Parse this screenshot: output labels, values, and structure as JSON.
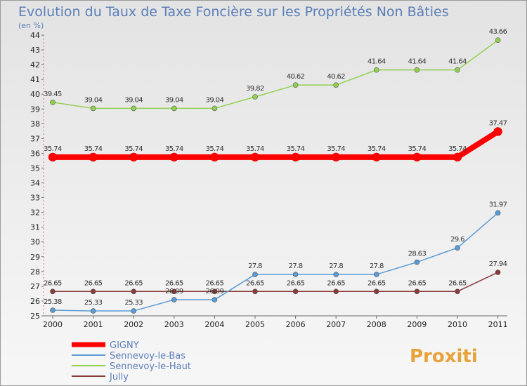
{
  "chart_data": {
    "type": "line",
    "title": "Evolution du Taux de Taxe Foncière sur les Propriétés Non Bâties",
    "subtitle": "(en %)",
    "x": [
      "2000",
      "2001",
      "2002",
      "2003",
      "2004",
      "2005",
      "2006",
      "2007",
      "2008",
      "2009",
      "2010",
      "2011"
    ],
    "ylim": [
      25,
      44
    ],
    "yticks": [
      "25",
      "26",
      "27",
      "28",
      "29",
      "30",
      "31",
      "32",
      "33",
      "34",
      "35",
      "36",
      "37",
      "38",
      "39",
      "40",
      "41",
      "42",
      "43",
      "44"
    ],
    "grid": false,
    "legend_position": "bottom-left",
    "series": [
      {
        "name": "GIGNY",
        "color": "#ff0000",
        "values": [
          35.74,
          35.74,
          35.74,
          35.74,
          35.74,
          35.74,
          35.74,
          35.74,
          35.74,
          35.74,
          35.74,
          37.47
        ],
        "labels": [
          "35.74",
          "35.74",
          "35.74",
          "35.74",
          "35.74",
          "35.74",
          "35.74",
          "35.74",
          "35.74",
          "35.74",
          "35.74",
          "37.47"
        ]
      },
      {
        "name": "Sennevoy-le-Bas",
        "color": "#5b9bd5",
        "values": [
          25.38,
          25.33,
          25.33,
          26.09,
          26.09,
          27.8,
          27.8,
          27.8,
          27.8,
          28.63,
          29.6,
          31.97
        ],
        "labels": [
          "25.38",
          "25.33",
          "25.33",
          "26.09",
          "26.09",
          "27.8",
          "27.8",
          "27.8",
          "27.8",
          "28.63",
          "29.6",
          "31.97"
        ]
      },
      {
        "name": "Sennevoy-le-Haut",
        "color": "#92d050",
        "values": [
          39.45,
          39.04,
          39.04,
          39.04,
          39.04,
          39.82,
          40.62,
          40.62,
          41.64,
          41.64,
          41.64,
          43.66
        ],
        "labels": [
          "39.45",
          "39.04",
          "39.04",
          "39.04",
          "39.04",
          "39.82",
          "40.62",
          "40.62",
          "41.64",
          "41.64",
          "41.64",
          "43.66"
        ]
      },
      {
        "name": "Jully",
        "color": "#8b3a3a",
        "values": [
          26.65,
          26.65,
          26.65,
          26.65,
          26.65,
          26.65,
          26.65,
          26.65,
          26.65,
          26.65,
          26.65,
          27.94
        ],
        "labels": [
          "26.65",
          "26.65",
          "26.65",
          "26.65",
          "26.65",
          "26.65",
          "26.65",
          "26.65",
          "26.65",
          "26.65",
          "26.65",
          "27.94"
        ]
      }
    ]
  },
  "branding": {
    "logo_text": "Proxiti"
  }
}
